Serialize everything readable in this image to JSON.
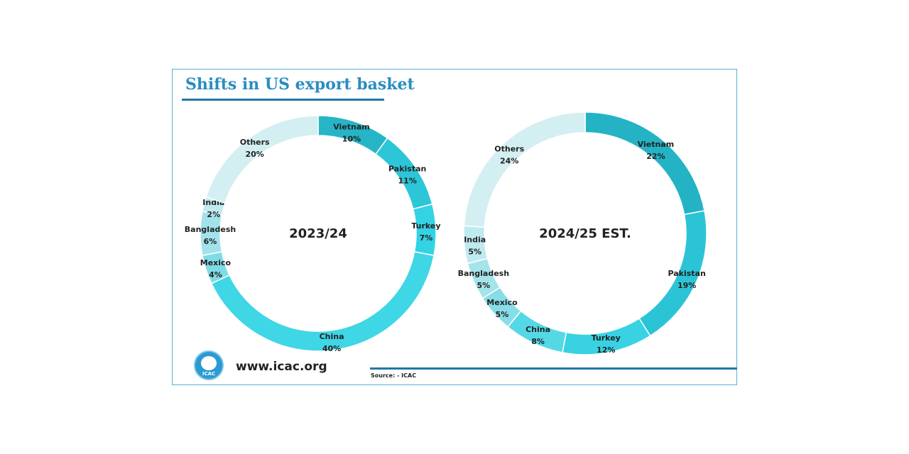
{
  "title": "Shifts in US export basket",
  "website": "www.icac.org",
  "source": "Source: - ICAC",
  "logo_text": "ICAC",
  "chart_data": [
    {
      "type": "pie",
      "center_label": "2023/24",
      "slices": [
        {
          "label": "Vietnam",
          "pct_text": "10%",
          "value": 10,
          "color": "#25b5c7"
        },
        {
          "label": "Pakistan",
          "pct_text": "11%",
          "value": 11,
          "color": "#2cc6d8"
        },
        {
          "label": "Turkey",
          "pct_text": "7%",
          "value": 7,
          "color": "#33d3e4"
        },
        {
          "label": "China",
          "pct_text": "40%",
          "value": 40,
          "color": "#3fd6e6"
        },
        {
          "label": "Mexico",
          "pct_text": "4%",
          "value": 4,
          "color": "#7fdce6"
        },
        {
          "label": "Bangladesh",
          "pct_text": "6%",
          "value": 6,
          "color": "#a2e3ea"
        },
        {
          "label": "India",
          "pct_text": "2%",
          "value": 2,
          "color": "#c0ebef"
        },
        {
          "label": "Others",
          "pct_text": "20%",
          "value": 20,
          "color": "#d3eff1"
        }
      ]
    },
    {
      "type": "pie",
      "center_label": "2024/25 EST.",
      "slices": [
        {
          "label": "Vietnam",
          "pct_text": "22%",
          "value": 22,
          "color": "#23b3c4"
        },
        {
          "label": "Pakistan",
          "pct_text": "19%",
          "value": 19,
          "color": "#2bc4d6"
        },
        {
          "label": "Turkey",
          "pct_text": "12%",
          "value": 12,
          "color": "#38d2e3"
        },
        {
          "label": "China",
          "pct_text": "8%",
          "value": 8,
          "color": "#55d8e6"
        },
        {
          "label": "Mexico",
          "pct_text": "5%",
          "value": 5,
          "color": "#86dde7"
        },
        {
          "label": "Bangladesh",
          "pct_text": "5%",
          "value": 5,
          "color": "#a4e4eb"
        },
        {
          "label": "India",
          "pct_text": "5%",
          "value": 5,
          "color": "#bfeaef"
        },
        {
          "label": "Others",
          "pct_text": "24%",
          "value": 24,
          "color": "#d3eff1"
        }
      ]
    }
  ]
}
